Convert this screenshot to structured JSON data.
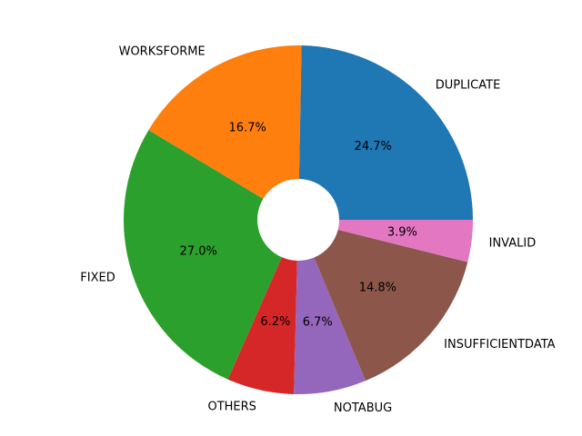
{
  "chart_data": {
    "type": "pie",
    "title": "",
    "donut": true,
    "start_angle_deg": 0,
    "direction": "counterclockwise",
    "slices": [
      {
        "label": "DUPLICATE",
        "percent": 24.7,
        "percent_label": "24.7%",
        "color": "#1f77b4"
      },
      {
        "label": "WORKSFORME",
        "percent": 16.7,
        "percent_label": "16.7%",
        "color": "#ff7f0e"
      },
      {
        "label": "FIXED",
        "percent": 27.0,
        "percent_label": "27.0%",
        "color": "#2ca02c"
      },
      {
        "label": "OTHERS",
        "percent": 6.2,
        "percent_label": "6.2%",
        "color": "#d62728"
      },
      {
        "label": "NOTABUG",
        "percent": 6.7,
        "percent_label": "6.7%",
        "color": "#9467bd"
      },
      {
        "label": "INSUFFICIENTDATA",
        "percent": 14.8,
        "percent_label": "14.8%",
        "color": "#8c564b"
      },
      {
        "label": "INVALID",
        "percent": 3.9,
        "percent_label": "3.9%",
        "color": "#e377c2"
      }
    ]
  }
}
